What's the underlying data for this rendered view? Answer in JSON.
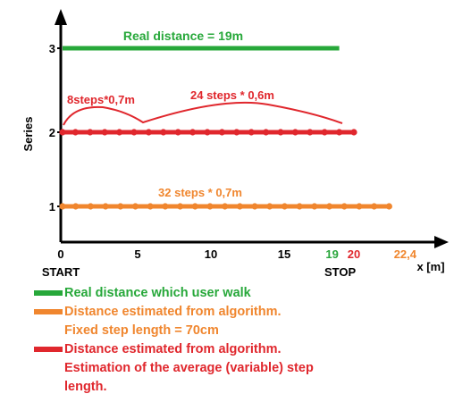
{
  "chart_data": {
    "type": "line",
    "ylabel": "Series",
    "xlabel": "x [m]",
    "y_ticks": [
      "1",
      "2",
      "3"
    ],
    "x_ticks": [
      "0",
      "5",
      "10",
      "15"
    ],
    "x_extra_labels": [
      {
        "text": "19",
        "value": 19,
        "color": "#2aa63c"
      },
      {
        "text": "20",
        "value": 20,
        "color": "#e0272d"
      },
      {
        "text": "22,4",
        "value": 22.4,
        "color": "#f0862e"
      }
    ],
    "start_label": "START",
    "stop_label": "STOP",
    "xlim": [
      0,
      24
    ],
    "ylim": [
      0,
      3.6
    ],
    "series": [
      {
        "y": 3,
        "x_start": 0,
        "x_end": 19,
        "color": "#27a83a",
        "markers": 0,
        "annotation": "Real distance = 19m"
      },
      {
        "y": 2,
        "x_start": 0,
        "x_end": 20,
        "color": "#e0272d",
        "markers": 20,
        "annotation_left": "8steps*0,7m",
        "annotation_right": "24 steps * 0,6m"
      },
      {
        "y": 1,
        "x_start": 0,
        "x_end": 22.4,
        "color": "#f0862e",
        "markers": 22,
        "annotation": "32 steps * 0,7m"
      }
    ]
  },
  "legend": {
    "items": [
      {
        "color": "#27a83a",
        "lines": [
          "Real distance  which user walk"
        ]
      },
      {
        "color": "#f0862e",
        "lines": [
          "Distance estimated from algorithm.",
          "Fixed step length = 70cm"
        ]
      },
      {
        "color": "#e0272d",
        "lines": [
          "Distance estimated from algorithm.",
          "Estimation of the average (variable) step",
          "length."
        ]
      }
    ]
  }
}
